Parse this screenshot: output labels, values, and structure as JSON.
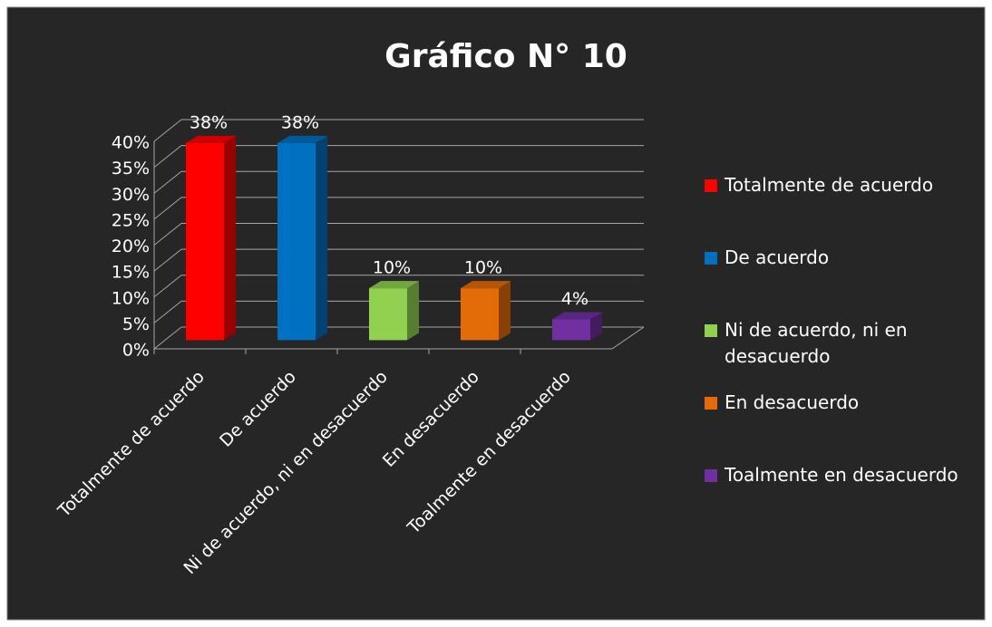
{
  "chart_data": {
    "type": "bar3d",
    "title": "Gráfico N° 10",
    "categories": [
      "Totalmente de acuerdo",
      "De acuerdo",
      "Ni de acuerdo, ni en desacuerdo",
      "En desacuerdo",
      "Toalmente en desacuerdo"
    ],
    "values": [
      38,
      38,
      10,
      10,
      4
    ],
    "value_labels": [
      "38%",
      "38%",
      "10%",
      "10%",
      "4%"
    ],
    "colors": [
      "#ff0000",
      "#0070c0",
      "#92d050",
      "#e36c09",
      "#7030a0"
    ],
    "ylim": [
      0,
      40
    ],
    "yticks": [
      {
        "value": 0,
        "label": "0%"
      },
      {
        "value": 5,
        "label": "5%"
      },
      {
        "value": 10,
        "label": "10%"
      },
      {
        "value": 15,
        "label": "15%"
      },
      {
        "value": 20,
        "label": "20%"
      },
      {
        "value": 25,
        "label": "25%"
      },
      {
        "value": 30,
        "label": "30%"
      },
      {
        "value": 35,
        "label": "35%"
      },
      {
        "value": 40,
        "label": "40%"
      }
    ],
    "grid": true,
    "legend": "right"
  }
}
